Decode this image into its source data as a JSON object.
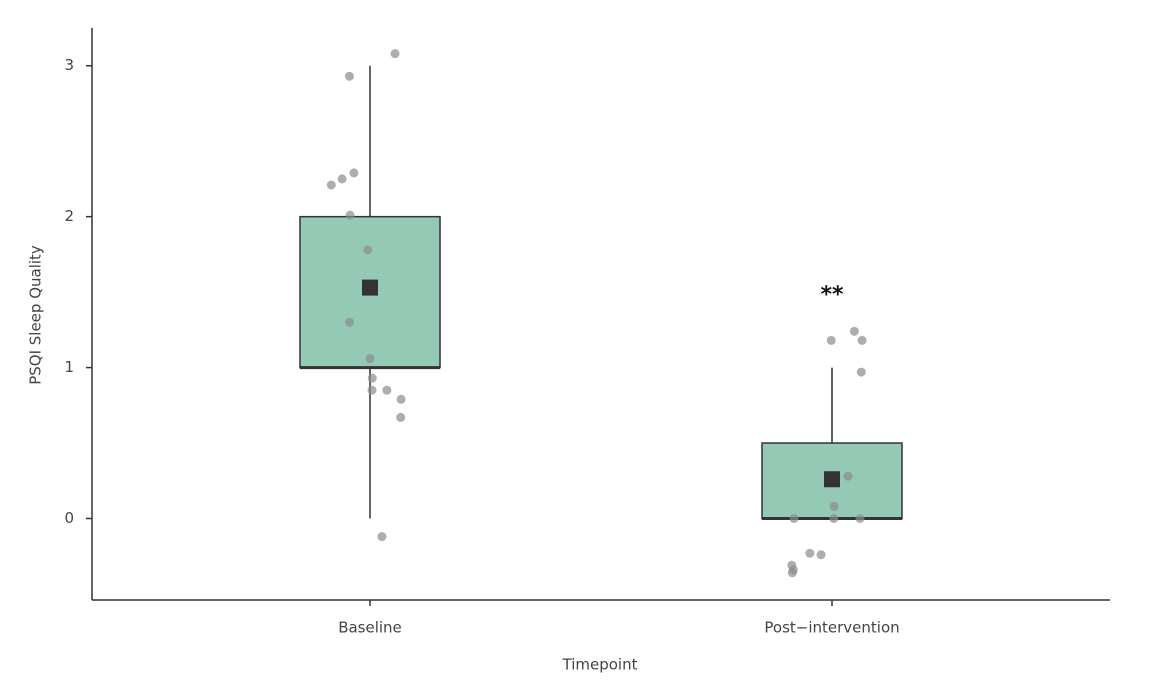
{
  "chart_data": {
    "type": "box",
    "xlabel": "Timepoint",
    "ylabel": "PSQI Sleep Quality",
    "categories": [
      "Baseline",
      "Post−intervention"
    ],
    "boxes": [
      {
        "whislo": 0,
        "q1": 1,
        "med": 1,
        "q3": 2,
        "whishi": 3,
        "mean": 1.53
      },
      {
        "whislo": 0,
        "q1": 0,
        "med": 0,
        "q3": 0.5,
        "whishi": 1,
        "mean": 0.26
      }
    ],
    "points": [
      [
        3.08,
        2.93,
        2.29,
        2.25,
        2.21,
        2.01,
        1.78,
        1.3,
        1.06,
        0.93,
        0.85,
        0.85,
        0.79,
        0.67,
        -0.12
      ],
      [
        1.18,
        1.24,
        1.18,
        0.97,
        0.28,
        0.08,
        0,
        0,
        0,
        -0.24,
        -0.23,
        -0.31,
        -0.34,
        -0.36
      ]
    ],
    "annotations": [
      {
        "text": "**",
        "category": 1
      }
    ],
    "color": "#93c9b5",
    "point_color": "#8c8c8c",
    "mean_color": "#333333",
    "ylim": [
      -0.54,
      3.25
    ],
    "yticks": [
      0,
      1,
      2,
      3
    ]
  }
}
